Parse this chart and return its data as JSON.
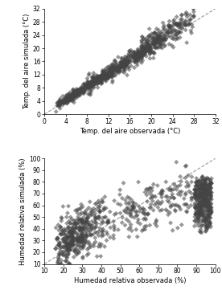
{
  "top_plot": {
    "xlabel": "Temp. del aire observada (°C)",
    "ylabel": "Temp. del aire simulada (°C)",
    "xlim": [
      0,
      32
    ],
    "ylim": [
      0,
      32
    ],
    "xticks": [
      0,
      4,
      8,
      12,
      16,
      20,
      24,
      28,
      32
    ],
    "yticks": [
      0,
      4,
      8,
      12,
      16,
      20,
      24,
      28,
      32
    ],
    "marker": "D",
    "markersize": 3.0,
    "color": "#444444",
    "alpha": 0.55
  },
  "bottom_plot": {
    "xlabel": "Humedad relativa observada (%)",
    "ylabel": "Humedad relativa simulada (%)",
    "xlim": [
      10,
      100
    ],
    "ylim": [
      10,
      100
    ],
    "xticks": [
      10,
      20,
      30,
      40,
      50,
      60,
      70,
      80,
      90,
      100
    ],
    "yticks": [
      10,
      20,
      30,
      40,
      50,
      60,
      70,
      80,
      90,
      100
    ],
    "marker": "D",
    "markersize": 3.0,
    "color": "#444444",
    "alpha": 0.55
  },
  "dashed_line_color": "#999999",
  "label_fontsize": 6.0,
  "tick_fontsize": 5.5,
  "figure_facecolor": "#ffffff"
}
